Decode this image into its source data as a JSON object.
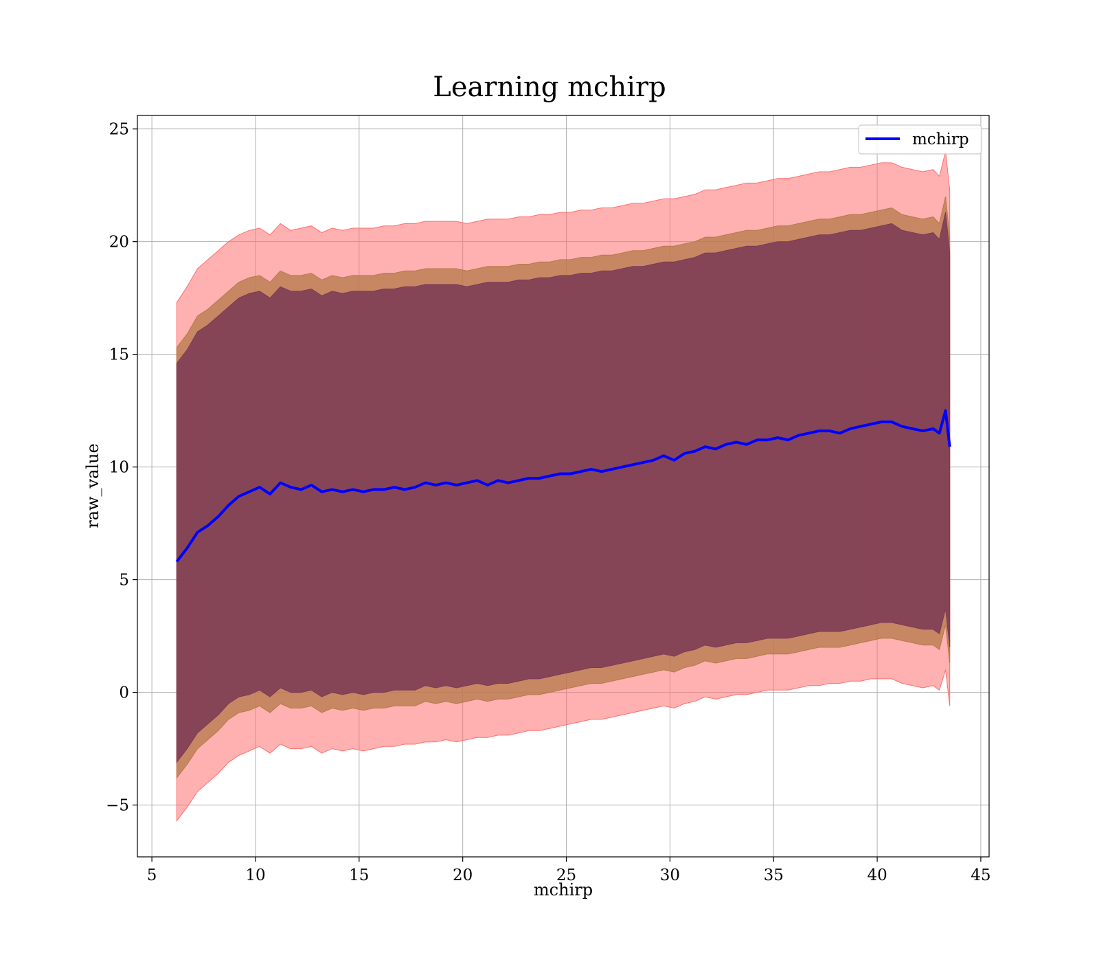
{
  "chart_data": {
    "type": "area",
    "title": "Learning mchirp",
    "xlabel": "mchirp",
    "ylabel": "raw_value",
    "xlim": [
      4.3,
      45.4
    ],
    "ylim": [
      -7.3,
      25.6
    ],
    "xticks": [
      5,
      10,
      15,
      20,
      25,
      30,
      35,
      40,
      45
    ],
    "yticks": [
      -5,
      0,
      5,
      10,
      15,
      20,
      25
    ],
    "xtick_labels": [
      "5",
      "10",
      "15",
      "20",
      "25",
      "30",
      "35",
      "40",
      "45"
    ],
    "ytick_labels": [
      "−5",
      "0",
      "5",
      "10",
      "15",
      "20",
      "25"
    ],
    "grid": true,
    "legend": {
      "position": "top-right",
      "entries": [
        "mchirp"
      ]
    },
    "colors": {
      "line": "#0000ff",
      "band_outer": "#ff6f6f",
      "band_middle": "#b5794a",
      "band_inner": "#7a3a55",
      "grid": "#b0b0b0"
    },
    "x": [
      6.2,
      6.7,
      7.2,
      7.7,
      8.2,
      8.7,
      9.2,
      9.7,
      10.2,
      10.7,
      11.2,
      11.7,
      12.2,
      12.7,
      13.2,
      13.7,
      14.2,
      14.7,
      15.2,
      15.7,
      16.2,
      16.7,
      17.2,
      17.7,
      18.2,
      18.7,
      19.2,
      19.7,
      20.2,
      20.7,
      21.2,
      21.7,
      22.2,
      22.7,
      23.2,
      23.7,
      24.2,
      24.7,
      25.2,
      25.7,
      26.2,
      26.7,
      27.2,
      27.7,
      28.2,
      28.7,
      29.2,
      29.7,
      30.2,
      30.7,
      31.2,
      31.7,
      32.2,
      32.7,
      33.2,
      33.7,
      34.2,
      34.7,
      35.2,
      35.7,
      36.2,
      36.7,
      37.2,
      37.7,
      38.2,
      38.7,
      39.2,
      39.7,
      40.2,
      40.7,
      41.2,
      41.7,
      42.2,
      42.7,
      43.0,
      43.3,
      43.5
    ],
    "series": [
      {
        "name": "mchirp",
        "values": [
          5.8,
          6.4,
          7.1,
          7.4,
          7.8,
          8.3,
          8.7,
          8.9,
          9.1,
          8.8,
          9.3,
          9.1,
          9.0,
          9.2,
          8.9,
          9.0,
          8.9,
          9.0,
          8.9,
          9.0,
          9.0,
          9.1,
          9.0,
          9.1,
          9.3,
          9.2,
          9.3,
          9.2,
          9.3,
          9.4,
          9.2,
          9.4,
          9.3,
          9.4,
          9.5,
          9.5,
          9.6,
          9.7,
          9.7,
          9.8,
          9.9,
          9.8,
          9.9,
          10.0,
          10.1,
          10.2,
          10.3,
          10.5,
          10.3,
          10.6,
          10.7,
          10.9,
          10.8,
          11.0,
          11.1,
          11.0,
          11.2,
          11.2,
          11.3,
          11.2,
          11.4,
          11.5,
          11.6,
          11.6,
          11.5,
          11.7,
          11.8,
          11.9,
          12.0,
          12.0,
          11.8,
          11.7,
          11.6,
          11.7,
          11.5,
          12.5,
          10.9
        ]
      }
    ],
    "bands": {
      "outer_upper": [
        17.3,
        18.0,
        18.8,
        19.2,
        19.6,
        20.0,
        20.3,
        20.5,
        20.6,
        20.3,
        20.8,
        20.5,
        20.6,
        20.7,
        20.4,
        20.6,
        20.5,
        20.6,
        20.6,
        20.6,
        20.7,
        20.7,
        20.8,
        20.8,
        20.9,
        20.9,
        20.9,
        20.9,
        20.8,
        20.9,
        21.0,
        21.0,
        21.0,
        21.1,
        21.1,
        21.2,
        21.2,
        21.3,
        21.3,
        21.4,
        21.4,
        21.5,
        21.5,
        21.6,
        21.7,
        21.7,
        21.8,
        21.9,
        21.9,
        22.0,
        22.1,
        22.3,
        22.3,
        22.4,
        22.5,
        22.6,
        22.6,
        22.7,
        22.8,
        22.8,
        22.9,
        23.0,
        23.1,
        23.1,
        23.2,
        23.3,
        23.3,
        23.4,
        23.5,
        23.5,
        23.3,
        23.2,
        23.1,
        23.2,
        22.9,
        24.0,
        22.3
      ],
      "middle_upper": [
        15.3,
        15.9,
        16.7,
        17.0,
        17.4,
        17.8,
        18.2,
        18.4,
        18.5,
        18.2,
        18.7,
        18.5,
        18.5,
        18.6,
        18.3,
        18.5,
        18.4,
        18.5,
        18.5,
        18.5,
        18.6,
        18.6,
        18.7,
        18.7,
        18.8,
        18.8,
        18.8,
        18.8,
        18.7,
        18.8,
        18.9,
        18.9,
        18.9,
        19.0,
        19.0,
        19.1,
        19.1,
        19.2,
        19.2,
        19.3,
        19.3,
        19.4,
        19.4,
        19.5,
        19.6,
        19.6,
        19.7,
        19.8,
        19.8,
        19.9,
        20.0,
        20.2,
        20.2,
        20.3,
        20.4,
        20.5,
        20.5,
        20.6,
        20.7,
        20.7,
        20.8,
        20.9,
        21.0,
        21.0,
        21.1,
        21.2,
        21.2,
        21.3,
        21.4,
        21.5,
        21.2,
        21.1,
        21.0,
        21.1,
        20.8,
        22.0,
        20.2
      ],
      "inner_upper": [
        14.6,
        15.2,
        16.0,
        16.3,
        16.7,
        17.1,
        17.5,
        17.7,
        17.8,
        17.5,
        18.0,
        17.8,
        17.8,
        17.9,
        17.6,
        17.8,
        17.7,
        17.8,
        17.8,
        17.8,
        17.9,
        17.9,
        18.0,
        18.0,
        18.1,
        18.1,
        18.1,
        18.1,
        18.0,
        18.1,
        18.2,
        18.2,
        18.2,
        18.3,
        18.3,
        18.4,
        18.4,
        18.5,
        18.5,
        18.6,
        18.6,
        18.7,
        18.7,
        18.8,
        18.9,
        18.9,
        19.0,
        19.1,
        19.1,
        19.2,
        19.3,
        19.5,
        19.5,
        19.6,
        19.7,
        19.8,
        19.8,
        19.9,
        20.0,
        20.0,
        20.1,
        20.2,
        20.3,
        20.3,
        20.4,
        20.5,
        20.5,
        20.6,
        20.7,
        20.8,
        20.5,
        20.4,
        20.3,
        20.4,
        20.1,
        21.3,
        19.5
      ],
      "inner_lower": [
        -3.1,
        -2.5,
        -1.8,
        -1.4,
        -1.0,
        -0.5,
        -0.2,
        -0.1,
        0.1,
        -0.2,
        0.2,
        0.0,
        0.0,
        0.1,
        -0.2,
        0.0,
        -0.1,
        0.0,
        -0.1,
        0.0,
        0.0,
        0.1,
        0.1,
        0.1,
        0.3,
        0.2,
        0.3,
        0.2,
        0.3,
        0.4,
        0.3,
        0.4,
        0.4,
        0.5,
        0.6,
        0.6,
        0.7,
        0.8,
        0.9,
        1.0,
        1.1,
        1.1,
        1.2,
        1.3,
        1.4,
        1.5,
        1.6,
        1.7,
        1.6,
        1.8,
        1.9,
        2.1,
        2.0,
        2.1,
        2.2,
        2.2,
        2.3,
        2.4,
        2.4,
        2.4,
        2.5,
        2.6,
        2.7,
        2.7,
        2.7,
        2.8,
        2.9,
        3.0,
        3.1,
        3.1,
        3.0,
        2.9,
        2.8,
        2.8,
        2.6,
        3.7,
        2.0
      ],
      "middle_lower": [
        -3.8,
        -3.2,
        -2.5,
        -2.1,
        -1.7,
        -1.2,
        -0.9,
        -0.8,
        -0.6,
        -0.9,
        -0.5,
        -0.7,
        -0.7,
        -0.6,
        -0.9,
        -0.7,
        -0.8,
        -0.7,
        -0.8,
        -0.7,
        -0.7,
        -0.6,
        -0.6,
        -0.6,
        -0.4,
        -0.5,
        -0.4,
        -0.5,
        -0.4,
        -0.3,
        -0.4,
        -0.3,
        -0.3,
        -0.2,
        -0.1,
        -0.1,
        0.0,
        0.1,
        0.2,
        0.3,
        0.4,
        0.4,
        0.5,
        0.6,
        0.7,
        0.8,
        0.9,
        1.0,
        0.9,
        1.1,
        1.2,
        1.4,
        1.3,
        1.4,
        1.5,
        1.5,
        1.6,
        1.7,
        1.7,
        1.7,
        1.8,
        1.9,
        2.0,
        2.0,
        2.0,
        2.1,
        2.2,
        2.3,
        2.4,
        2.4,
        2.3,
        2.2,
        2.1,
        2.1,
        1.9,
        3.0,
        1.3
      ],
      "outer_lower": [
        -5.7,
        -5.1,
        -4.4,
        -4.0,
        -3.6,
        -3.1,
        -2.8,
        -2.6,
        -2.4,
        -2.7,
        -2.3,
        -2.5,
        -2.5,
        -2.4,
        -2.7,
        -2.5,
        -2.6,
        -2.5,
        -2.6,
        -2.5,
        -2.4,
        -2.4,
        -2.3,
        -2.3,
        -2.2,
        -2.2,
        -2.1,
        -2.2,
        -2.1,
        -2.0,
        -2.0,
        -1.9,
        -1.9,
        -1.8,
        -1.7,
        -1.7,
        -1.6,
        -1.5,
        -1.4,
        -1.3,
        -1.2,
        -1.2,
        -1.1,
        -1.0,
        -0.9,
        -0.8,
        -0.7,
        -0.6,
        -0.7,
        -0.5,
        -0.4,
        -0.2,
        -0.3,
        -0.2,
        -0.1,
        -0.1,
        0.0,
        0.1,
        0.1,
        0.1,
        0.2,
        0.3,
        0.3,
        0.4,
        0.4,
        0.5,
        0.5,
        0.6,
        0.6,
        0.6,
        0.4,
        0.3,
        0.2,
        0.3,
        0.1,
        1.0,
        -0.6
      ]
    }
  }
}
